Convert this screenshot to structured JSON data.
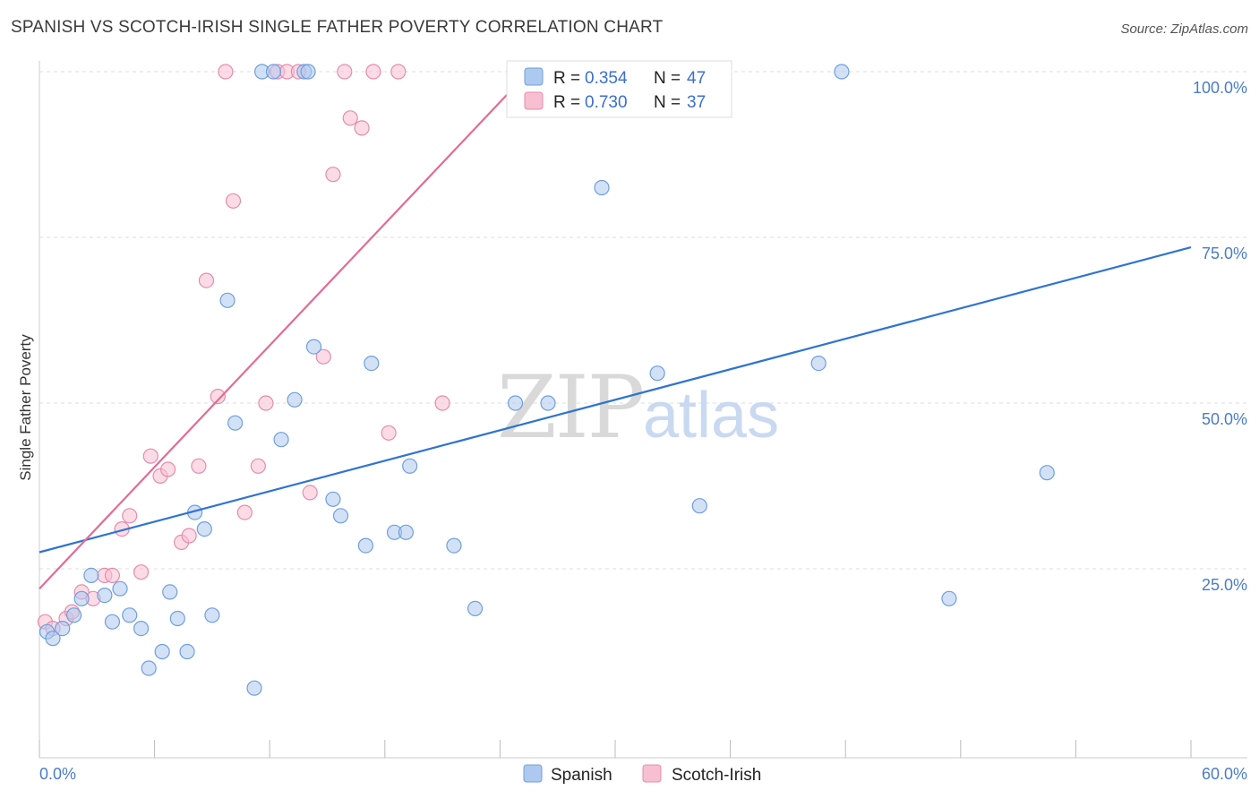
{
  "chart_data": {
    "type": "scatter",
    "title": "SPANISH VS SCOTCH-IRISH SINGLE FATHER POVERTY CORRELATION CHART",
    "source": "Source: ZipAtlas.com",
    "xlabel": "",
    "ylabel": "Single Father Poverty",
    "xlim": [
      0,
      60
    ],
    "ylim": [
      0,
      100
    ],
    "x_tick_labels": [
      "0.0%",
      "60.0%"
    ],
    "y_ticks": [
      {
        "value": 25,
        "label": "25.0%"
      },
      {
        "value": 50,
        "label": "50.0%"
      },
      {
        "value": 75,
        "label": "75.0%"
      },
      {
        "value": 100,
        "label": "100.0%"
      }
    ],
    "watermark": {
      "zip": "ZIP",
      "atlas": "atlas"
    },
    "colors": {
      "spanish_fill": "#aec9ef",
      "spanish_stroke": "#6f9fde",
      "spanish_line": "#2f74d0",
      "scotch_fill": "#f7bfd1",
      "scotch_stroke": "#e68cab",
      "scotch_line": "#e36b96",
      "axis_text": "#4a7cc7",
      "grid": "#dddddd"
    },
    "legend": {
      "r_label": "R =",
      "n_label": "N =",
      "entries": [
        {
          "name": "Spanish",
          "r": "0.354",
          "n": "47"
        },
        {
          "name": "Scotch-Irish",
          "r": "0.730",
          "n": "37"
        }
      ]
    },
    "series": [
      {
        "name": "Spanish",
        "trend": {
          "x0": 0,
          "y0": 27.5,
          "x1": 60,
          "y1": 73.5
        },
        "points": [
          [
            0.4,
            15.5
          ],
          [
            0.7,
            14.5
          ],
          [
            1.2,
            16
          ],
          [
            1.8,
            18
          ],
          [
            2.2,
            20.5
          ],
          [
            2.7,
            24
          ],
          [
            3.4,
            21
          ],
          [
            3.8,
            17
          ],
          [
            4.2,
            22
          ],
          [
            4.7,
            18
          ],
          [
            5.3,
            16
          ],
          [
            5.7,
            10
          ],
          [
            6.4,
            12.5
          ],
          [
            6.8,
            21.5
          ],
          [
            7.2,
            17.5
          ],
          [
            7.7,
            12.5
          ],
          [
            8.1,
            33.5
          ],
          [
            8.6,
            31
          ],
          [
            9.0,
            18
          ],
          [
            9.8,
            65.5
          ],
          [
            10.2,
            47
          ],
          [
            11.2,
            7
          ],
          [
            11.6,
            100
          ],
          [
            12.2,
            100
          ],
          [
            12.6,
            44.5
          ],
          [
            13.3,
            50.5
          ],
          [
            13.8,
            100
          ],
          [
            14.0,
            100
          ],
          [
            14.3,
            58.5
          ],
          [
            15.3,
            35.5
          ],
          [
            15.7,
            33
          ],
          [
            17.0,
            28.5
          ],
          [
            17.3,
            56
          ],
          [
            18.5,
            30.5
          ],
          [
            19.1,
            30.5
          ],
          [
            19.3,
            40.5
          ],
          [
            21.6,
            28.5
          ],
          [
            22.7,
            19
          ],
          [
            24.8,
            50
          ],
          [
            26.5,
            50
          ],
          [
            29.3,
            82.5
          ],
          [
            32.2,
            54.5
          ],
          [
            34.4,
            34.5
          ],
          [
            40.6,
            56
          ],
          [
            41.8,
            100
          ],
          [
            47.4,
            20.5
          ],
          [
            52.5,
            39.5
          ]
        ]
      },
      {
        "name": "Scotch-Irish",
        "trend": {
          "x0": 0,
          "y0": 22,
          "x1": 25.5,
          "y1": 100
        },
        "points": [
          [
            0.3,
            17
          ],
          [
            0.7,
            16
          ],
          [
            1.4,
            17.5
          ],
          [
            1.7,
            18.5
          ],
          [
            2.2,
            21.5
          ],
          [
            2.8,
            20.5
          ],
          [
            3.4,
            24
          ],
          [
            3.8,
            24
          ],
          [
            4.3,
            31
          ],
          [
            4.7,
            33
          ],
          [
            5.3,
            24.5
          ],
          [
            5.8,
            42
          ],
          [
            6.3,
            39
          ],
          [
            6.7,
            40
          ],
          [
            7.4,
            29
          ],
          [
            7.8,
            30
          ],
          [
            8.3,
            40.5
          ],
          [
            8.7,
            68.5
          ],
          [
            9.3,
            51
          ],
          [
            9.7,
            100
          ],
          [
            10.1,
            80.5
          ],
          [
            10.7,
            33.5
          ],
          [
            11.4,
            40.5
          ],
          [
            11.8,
            50
          ],
          [
            12.4,
            100
          ],
          [
            12.9,
            100
          ],
          [
            13.5,
            100
          ],
          [
            14.1,
            36.5
          ],
          [
            14.8,
            57
          ],
          [
            15.3,
            84.5
          ],
          [
            15.9,
            100
          ],
          [
            16.2,
            93
          ],
          [
            16.8,
            91.5
          ],
          [
            17.4,
            100
          ],
          [
            18.2,
            45.5
          ],
          [
            18.7,
            100
          ],
          [
            21.0,
            50
          ]
        ]
      }
    ]
  }
}
